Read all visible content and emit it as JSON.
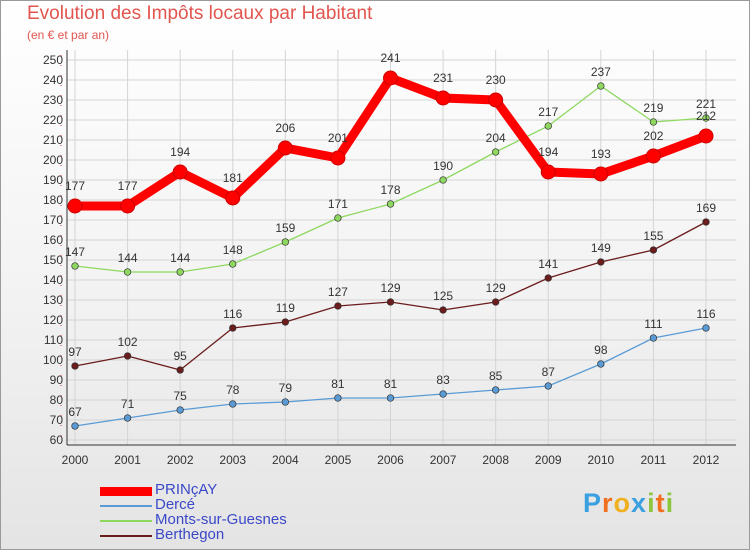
{
  "chart_data": {
    "type": "line",
    "title": "Evolution des Impôts locaux par Habitant",
    "subtitle": "(en € et par an)",
    "x": [
      "2000",
      "2001",
      "2002",
      "2003",
      "2004",
      "2005",
      "2006",
      "2007",
      "2008",
      "2009",
      "2010",
      "2011",
      "2012"
    ],
    "ylim": [
      60,
      250
    ],
    "yticks": [
      60,
      70,
      80,
      90,
      100,
      110,
      120,
      130,
      140,
      150,
      160,
      170,
      180,
      190,
      200,
      210,
      220,
      230,
      240,
      250
    ],
    "grid": true,
    "legend_position": "bottom-left",
    "series": [
      {
        "name": "PRINçAY",
        "color": "#ff0000",
        "values": [
          177,
          177,
          194,
          181,
          206,
          201,
          241,
          231,
          230,
          194,
          193,
          202,
          212
        ]
      },
      {
        "name": "Dercé",
        "color": "#5a9bd5",
        "values": [
          67,
          71,
          75,
          78,
          79,
          81,
          81,
          83,
          85,
          87,
          98,
          111,
          116
        ]
      },
      {
        "name": "Monts-sur-Guesnes",
        "color": "#8ed860",
        "values": [
          147,
          144,
          144,
          148,
          159,
          171,
          178,
          190,
          204,
          217,
          237,
          219,
          221
        ]
      },
      {
        "name": "Berthegon",
        "color": "#6b1c1c",
        "values": [
          97,
          102,
          95,
          116,
          119,
          127,
          129,
          125,
          129,
          141,
          149,
          155,
          169
        ]
      }
    ]
  },
  "logo": {
    "text": "Proxiti",
    "letters": [
      {
        "ch": "P",
        "color": "#3aa0e0"
      },
      {
        "ch": "r",
        "color": "#f07020"
      },
      {
        "ch": "o",
        "color": "#f0b020"
      },
      {
        "ch": "x",
        "color": "#3aa0e0"
      },
      {
        "ch": "i",
        "color": "#8cc63f"
      },
      {
        "ch": "t",
        "color": "#f07020"
      },
      {
        "ch": "i",
        "color": "#8cc63f"
      }
    ]
  }
}
